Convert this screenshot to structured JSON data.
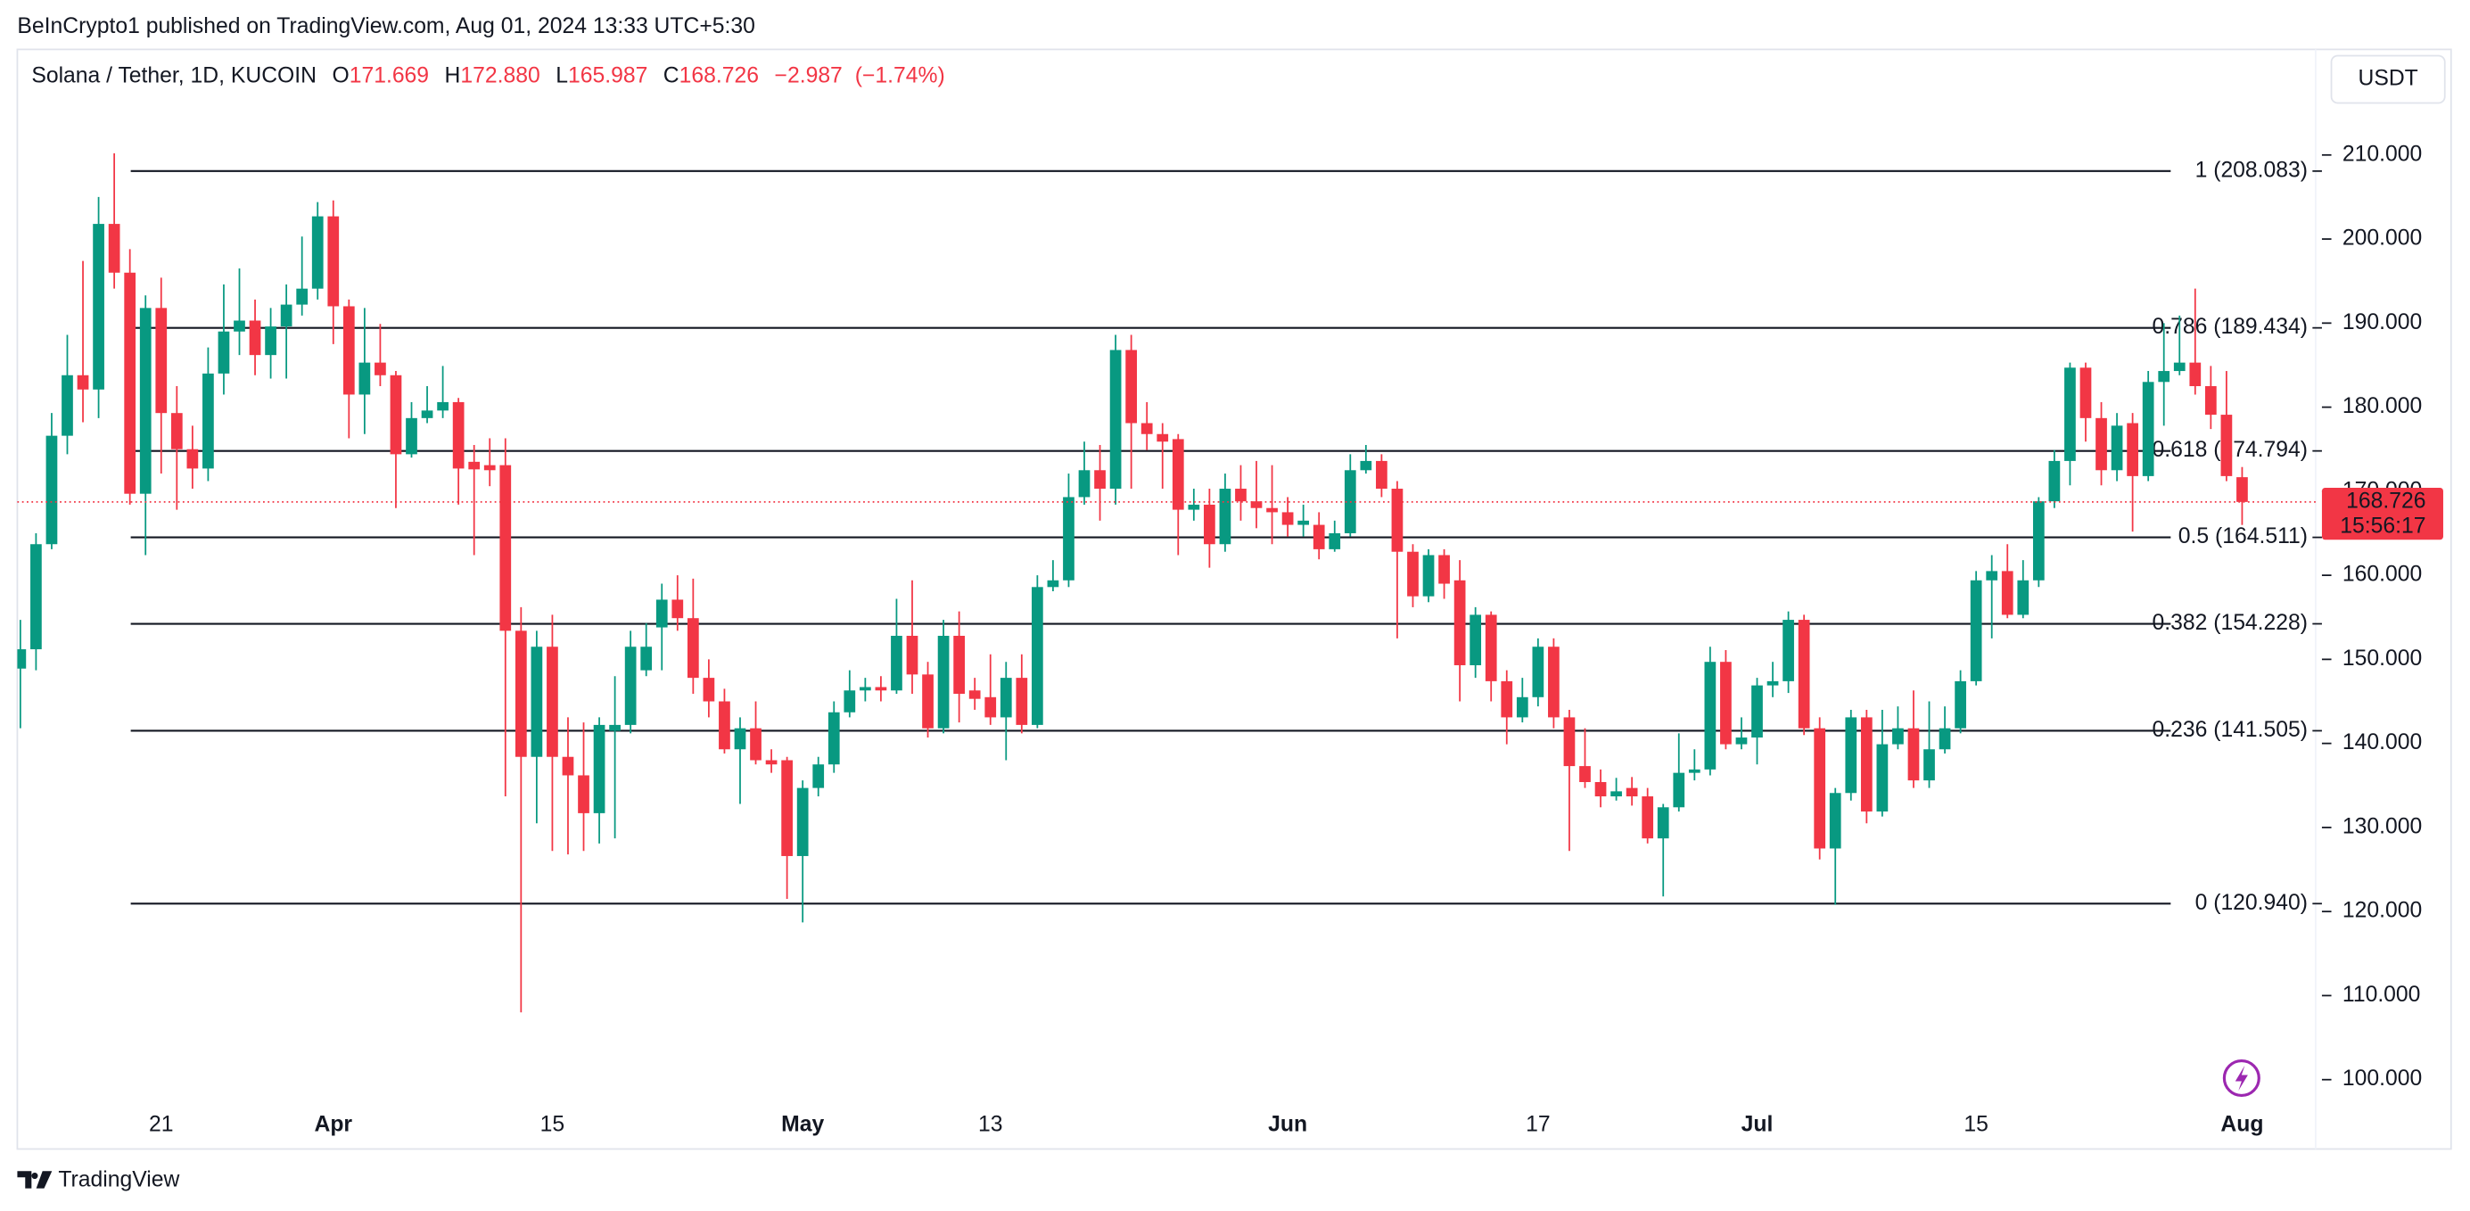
{
  "header": {
    "publisher": "BeInCrypto1 published on TradingView.com, Aug 01, 2024 13:33 UTC+5:30",
    "brand": "TradingView",
    "currency": "USDT"
  },
  "chart_data": {
    "type": "candlestick",
    "symbol": "Solana / Tether, 1D, KUCOIN",
    "legend": {
      "open_key": "O",
      "open": {
        "value": 171.669,
        "label": "171.669"
      },
      "high_key": "H",
      "high": {
        "value": 172.88,
        "label": "172.880"
      },
      "low_key": "L",
      "low": {
        "value": 165.987,
        "label": "165.987"
      },
      "close_key": "C",
      "close": {
        "value": 168.726,
        "label": "168.726"
      },
      "change": {
        "value": -2.987,
        "label": "−2.987"
      },
      "change_pct": {
        "value": -1.74,
        "label": "(−1.74%)"
      }
    },
    "up_color": "#089981",
    "down_color": "#f23645",
    "x": [
      "2024-03-12",
      "2024-03-13",
      "2024-03-14",
      "2024-03-15",
      "2024-03-16",
      "2024-03-17",
      "2024-03-18",
      "2024-03-19",
      "2024-03-20",
      "2024-03-21",
      "2024-03-22",
      "2024-03-23",
      "2024-03-24",
      "2024-03-25",
      "2024-03-26",
      "2024-03-27",
      "2024-03-28",
      "2024-03-29",
      "2024-03-30",
      "2024-03-31",
      "2024-04-01",
      "2024-04-02",
      "2024-04-03",
      "2024-04-04",
      "2024-04-05",
      "2024-04-06",
      "2024-04-07",
      "2024-04-08",
      "2024-04-09",
      "2024-04-10",
      "2024-04-11",
      "2024-04-12",
      "2024-04-13",
      "2024-04-14",
      "2024-04-15",
      "2024-04-16",
      "2024-04-17",
      "2024-04-18",
      "2024-04-19",
      "2024-04-20",
      "2024-04-21",
      "2024-04-22",
      "2024-04-23",
      "2024-04-24",
      "2024-04-25",
      "2024-04-26",
      "2024-04-27",
      "2024-04-28",
      "2024-04-29",
      "2024-04-30",
      "2024-05-01",
      "2024-05-02",
      "2024-05-03",
      "2024-05-04",
      "2024-05-05",
      "2024-05-06",
      "2024-05-07",
      "2024-05-08",
      "2024-05-09",
      "2024-05-10",
      "2024-05-11",
      "2024-05-12",
      "2024-05-13",
      "2024-05-14",
      "2024-05-15",
      "2024-05-16",
      "2024-05-17",
      "2024-05-18",
      "2024-05-19",
      "2024-05-20",
      "2024-05-21",
      "2024-05-22",
      "2024-05-23",
      "2024-05-24",
      "2024-05-25",
      "2024-05-26",
      "2024-05-27",
      "2024-05-28",
      "2024-05-29",
      "2024-05-30",
      "2024-05-31",
      "2024-06-01",
      "2024-06-02",
      "2024-06-03",
      "2024-06-04",
      "2024-06-05",
      "2024-06-06",
      "2024-06-07",
      "2024-06-08",
      "2024-06-09",
      "2024-06-10",
      "2024-06-11",
      "2024-06-12",
      "2024-06-13",
      "2024-06-14",
      "2024-06-15",
      "2024-06-16",
      "2024-06-17",
      "2024-06-18",
      "2024-06-19",
      "2024-06-20",
      "2024-06-21",
      "2024-06-22",
      "2024-06-23",
      "2024-06-24",
      "2024-06-25",
      "2024-06-26",
      "2024-06-27",
      "2024-06-28",
      "2024-06-29",
      "2024-06-30",
      "2024-07-01",
      "2024-07-02",
      "2024-07-03",
      "2024-07-04",
      "2024-07-05",
      "2024-07-06",
      "2024-07-07",
      "2024-07-08",
      "2024-07-09",
      "2024-07-10",
      "2024-07-11",
      "2024-07-12",
      "2024-07-13",
      "2024-07-14",
      "2024-07-15",
      "2024-07-16",
      "2024-07-17",
      "2024-07-18",
      "2024-07-19",
      "2024-07-20",
      "2024-07-21",
      "2024-07-22",
      "2024-07-23",
      "2024-07-24",
      "2024-07-25",
      "2024-07-26",
      "2024-07-27",
      "2024-07-28",
      "2024-07-29",
      "2024-07-30",
      "2024-07-31",
      "2024-08-01"
    ],
    "open": [
      148.9,
      151.2,
      163.7,
      176.6,
      183.8,
      182.1,
      201.8,
      196.0,
      169.7,
      191.8,
      179.3,
      175.0,
      172.7,
      184.0,
      189.0,
      190.3,
      186.2,
      189.6,
      192.2,
      194.1,
      202.7,
      192.0,
      181.5,
      185.3,
      183.8,
      174.4,
      178.7,
      179.6,
      180.6,
      173.5,
      173.1,
      173.1,
      153.4,
      138.4,
      151.5,
      138.4,
      136.2,
      131.7,
      141.5,
      142.2,
      148.7,
      153.8,
      157.1,
      154.9,
      147.8,
      145.0,
      139.3,
      141.8,
      138.0,
      138.0,
      126.6,
      134.7,
      137.5,
      143.7,
      146.3,
      146.7,
      146.3,
      152.8,
      148.2,
      141.8,
      152.8,
      146.3,
      145.5,
      143.1,
      147.8,
      142.2,
      158.6,
      159.4,
      169.3,
      172.5,
      170.3,
      186.8,
      178.1,
      176.8,
      176.2,
      167.8,
      168.4,
      163.7,
      170.3,
      168.8,
      168.0,
      167.5,
      166.0,
      166.0,
      163.1,
      165.0,
      172.5,
      173.6,
      170.3,
      162.8,
      157.5,
      162.4,
      159.4,
      149.3,
      155.3,
      147.4,
      143.1,
      145.5,
      151.5,
      143.1,
      137.3,
      135.4,
      133.7,
      134.7,
      133.7,
      128.7,
      132.4,
      136.5,
      136.9,
      149.7,
      139.9,
      140.7,
      146.9,
      147.4,
      154.7,
      141.8,
      127.5,
      134.1,
      143.1,
      131.9,
      139.9,
      141.8,
      135.6,
      139.3,
      141.8,
      147.4,
      159.4,
      160.5,
      155.3,
      159.4,
      168.8,
      173.6,
      184.7,
      178.7,
      172.5,
      178.1,
      171.8,
      183.0,
      184.3,
      185.3,
      182.5,
      179.1,
      171.669
    ],
    "high": [
      154.7,
      165.0,
      179.3,
      188.6,
      197.4,
      205.0,
      210.2,
      198.8,
      193.3,
      195.4,
      182.5,
      177.8,
      187.1,
      194.6,
      196.5,
      192.8,
      191.8,
      194.6,
      200.3,
      204.4,
      204.6,
      192.8,
      191.8,
      189.9,
      184.3,
      180.6,
      182.5,
      184.9,
      181.1,
      175.5,
      176.3,
      176.3,
      156.2,
      153.4,
      155.3,
      143.1,
      142.5,
      143.1,
      148.0,
      153.4,
      154.3,
      159.0,
      160.0,
      159.6,
      150.0,
      146.5,
      143.1,
      145.0,
      139.3,
      138.4,
      135.6,
      138.4,
      145.0,
      148.7,
      147.8,
      148.0,
      157.2,
      159.4,
      149.7,
      154.7,
      155.7,
      147.8,
      150.6,
      149.7,
      150.6,
      160.0,
      161.8,
      172.1,
      175.9,
      175.5,
      188.6,
      188.6,
      180.6,
      178.1,
      176.8,
      170.3,
      170.3,
      172.1,
      173.1,
      173.6,
      173.1,
      169.3,
      168.4,
      167.5,
      166.5,
      174.4,
      175.5,
      174.4,
      171.2,
      163.7,
      163.1,
      163.1,
      161.8,
      156.2,
      155.7,
      148.7,
      147.8,
      152.5,
      152.5,
      144.0,
      141.8,
      136.9,
      135.9,
      136.0,
      134.7,
      132.8,
      141.2,
      139.3,
      151.5,
      151.1,
      143.1,
      147.8,
      149.7,
      155.7,
      155.3,
      143.1,
      134.7,
      144.0,
      144.0,
      144.0,
      144.4,
      146.3,
      145.0,
      144.4,
      148.7,
      160.5,
      162.4,
      163.7,
      161.8,
      169.3,
      174.9,
      185.3,
      185.3,
      180.6,
      179.3,
      179.3,
      184.3,
      190.0,
      190.9,
      194.1,
      184.9,
      184.3,
      172.88
    ],
    "low": [
      141.8,
      148.7,
      163.1,
      174.4,
      178.2,
      178.7,
      194.1,
      168.4,
      162.4,
      172.1,
      167.8,
      170.3,
      171.2,
      181.5,
      186.2,
      183.8,
      183.4,
      183.4,
      190.9,
      192.8,
      187.5,
      176.3,
      176.8,
      182.5,
      168.0,
      174.0,
      178.1,
      178.7,
      168.4,
      162.4,
      170.6,
      133.7,
      108.0,
      130.5,
      127.2,
      126.8,
      127.2,
      128.1,
      128.7,
      141.2,
      148.0,
      148.7,
      153.4,
      145.9,
      143.1,
      138.8,
      132.8,
      137.5,
      136.5,
      121.5,
      118.7,
      133.7,
      136.5,
      143.1,
      145.0,
      145.0,
      145.9,
      145.9,
      140.7,
      141.2,
      142.5,
      144.0,
      142.2,
      138.0,
      141.2,
      141.8,
      158.1,
      158.6,
      168.4,
      166.5,
      168.4,
      170.3,
      174.9,
      170.3,
      162.4,
      166.5,
      160.9,
      162.8,
      166.5,
      165.6,
      163.7,
      164.6,
      164.6,
      161.9,
      162.8,
      164.6,
      172.1,
      169.3,
      152.5,
      156.2,
      156.8,
      157.2,
      145.0,
      147.8,
      145.0,
      139.9,
      142.5,
      144.4,
      141.8,
      127.2,
      134.7,
      132.4,
      133.2,
      132.6,
      128.1,
      121.8,
      131.9,
      135.6,
      136.2,
      139.3,
      139.3,
      137.5,
      145.5,
      146.0,
      141.0,
      126.2,
      120.8,
      133.2,
      130.5,
      131.3,
      139.3,
      134.7,
      134.7,
      138.8,
      141.2,
      146.9,
      152.5,
      154.9,
      154.9,
      158.6,
      168.0,
      170.7,
      175.9,
      170.7,
      171.2,
      165.2,
      171.2,
      177.8,
      183.8,
      181.5,
      177.4,
      171.2,
      165.987
    ],
    "close": [
      151.2,
      163.7,
      176.6,
      183.8,
      182.1,
      201.8,
      196.0,
      169.7,
      191.8,
      179.3,
      175.0,
      172.7,
      184.0,
      189.0,
      190.3,
      186.2,
      189.6,
      192.2,
      194.1,
      202.7,
      192.0,
      181.5,
      185.3,
      183.8,
      174.4,
      178.7,
      179.6,
      180.6,
      172.7,
      172.6,
      172.5,
      153.4,
      138.4,
      151.5,
      138.4,
      136.2,
      131.7,
      142.2,
      142.2,
      151.5,
      151.5,
      157.1,
      154.9,
      147.8,
      145.0,
      139.3,
      141.8,
      138.0,
      137.5,
      126.6,
      134.7,
      137.5,
      143.7,
      146.3,
      146.7,
      146.3,
      152.8,
      148.2,
      141.8,
      152.8,
      145.9,
      145.3,
      143.1,
      147.8,
      142.2,
      158.6,
      159.4,
      169.3,
      172.5,
      170.3,
      186.8,
      178.1,
      176.8,
      175.9,
      167.8,
      168.4,
      163.7,
      170.3,
      168.8,
      168.0,
      167.5,
      166.0,
      166.5,
      163.1,
      165.0,
      172.5,
      173.6,
      170.3,
      162.8,
      157.5,
      162.4,
      159.0,
      149.3,
      155.3,
      147.4,
      143.1,
      145.5,
      151.5,
      143.1,
      137.3,
      135.4,
      133.7,
      134.3,
      133.7,
      128.7,
      132.4,
      136.5,
      136.9,
      149.7,
      139.9,
      140.7,
      146.9,
      147.4,
      154.7,
      141.8,
      127.5,
      134.1,
      143.1,
      131.9,
      139.9,
      141.8,
      135.6,
      139.3,
      141.8,
      147.4,
      159.4,
      160.5,
      155.3,
      159.4,
      168.8,
      173.6,
      184.7,
      178.7,
      172.5,
      177.8,
      171.8,
      183.0,
      184.3,
      185.3,
      182.5,
      179.1,
      171.8,
      168.726
    ],
    "xlim": [
      "2024-03-11",
      "2024-08-06"
    ],
    "xticks": [
      {
        "value": "2024-03-21",
        "label": "21"
      },
      {
        "value": "2024-04-01",
        "label": "Apr"
      },
      {
        "value": "2024-04-15",
        "label": "15"
      },
      {
        "value": "2024-05-01",
        "label": "May"
      },
      {
        "value": "2024-05-13",
        "label": "13"
      },
      {
        "value": "2024-06-01",
        "label": "Jun"
      },
      {
        "value": "2024-06-17",
        "label": "17"
      },
      {
        "value": "2024-07-01",
        "label": "Jul"
      },
      {
        "value": "2024-07-15",
        "label": "15"
      },
      {
        "value": "2024-08-01",
        "label": "Aug"
      }
    ],
    "ylim": [
      91.75,
      222.56
    ],
    "yticks": [
      {
        "value": 100,
        "label": "100.000"
      },
      {
        "value": 110,
        "label": "110.000"
      },
      {
        "value": 120,
        "label": "120.000"
      },
      {
        "value": 130,
        "label": "130.000"
      },
      {
        "value": 140,
        "label": "140.000"
      },
      {
        "value": 150,
        "label": "150.000"
      },
      {
        "value": 160,
        "label": "160.000"
      },
      {
        "value": 170,
        "label": "170.000"
      },
      {
        "value": 180,
        "label": "180.000"
      },
      {
        "value": 190,
        "label": "190.000"
      },
      {
        "value": 200,
        "label": "200.000"
      },
      {
        "value": 210,
        "label": "210.000"
      }
    ],
    "fib_levels": [
      {
        "value": 208.083,
        "label": "1 (208.083)"
      },
      {
        "value": 189.434,
        "label": "0.786 (189.434)"
      },
      {
        "value": 174.794,
        "label": "0.618 (174.794)"
      },
      {
        "value": 164.511,
        "label": "0.5 (164.511)"
      },
      {
        "value": 154.228,
        "label": "0.382 (154.228)"
      },
      {
        "value": 141.505,
        "label": "0.236 (141.505)"
      },
      {
        "value": 120.94,
        "label": "0 (120.940)"
      }
    ],
    "last_price": {
      "value": 168.726,
      "label": "168.726"
    },
    "countdown": "15:56:17"
  }
}
